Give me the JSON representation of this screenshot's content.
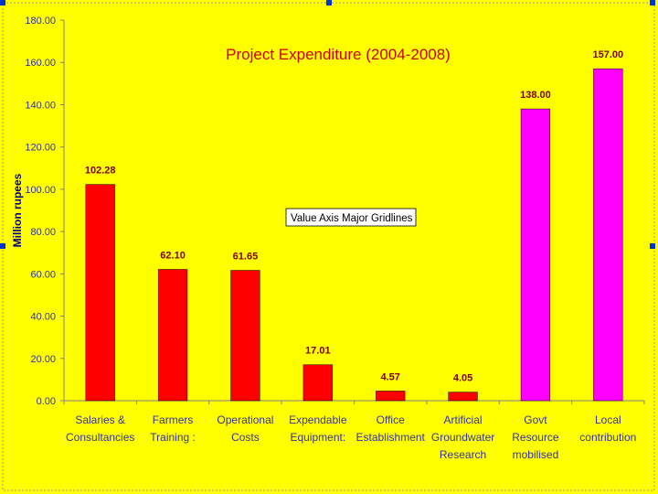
{
  "chart_data": {
    "type": "bar",
    "title": "Project Expenditure (2004-2008)",
    "xlabel": "",
    "ylabel": "Million rupees",
    "ylim": [
      0,
      180
    ],
    "yticks": [
      "0.00",
      "20.00",
      "40.00",
      "60.00",
      "80.00",
      "100.00",
      "120.00",
      "140.00",
      "160.00",
      "180.00"
    ],
    "categories": [
      [
        "Salaries &",
        "Consultancies"
      ],
      [
        "Farmers",
        "Training :"
      ],
      [
        "Operational",
        "Costs"
      ],
      [
        "Expendable",
        "Equipment:"
      ],
      [
        "Office",
        "Establishment"
      ],
      [
        "Artificial",
        "Groundwater",
        "Research"
      ],
      [
        "Govt",
        "Resource",
        "mobilised"
      ],
      [
        "Local",
        "contribution"
      ]
    ],
    "values": [
      102.28,
      62.1,
      61.65,
      17.01,
      4.57,
      4.05,
      138.0,
      157.0
    ],
    "value_labels": [
      "102.28",
      "62.10",
      "61.65",
      "17.01",
      "4.57",
      "4.05",
      "138.00",
      "157.00"
    ],
    "bar_colors": [
      "#ff0000",
      "#ff0000",
      "#ff0000",
      "#ff0000",
      "#ff0000",
      "#ff0000",
      "#ff00ff",
      "#ff00ff"
    ],
    "grid": false,
    "tooltip": "Value Axis Major Gridlines"
  },
  "colors": {
    "background": "#ffff00",
    "selection_handle": "#0033cc"
  }
}
